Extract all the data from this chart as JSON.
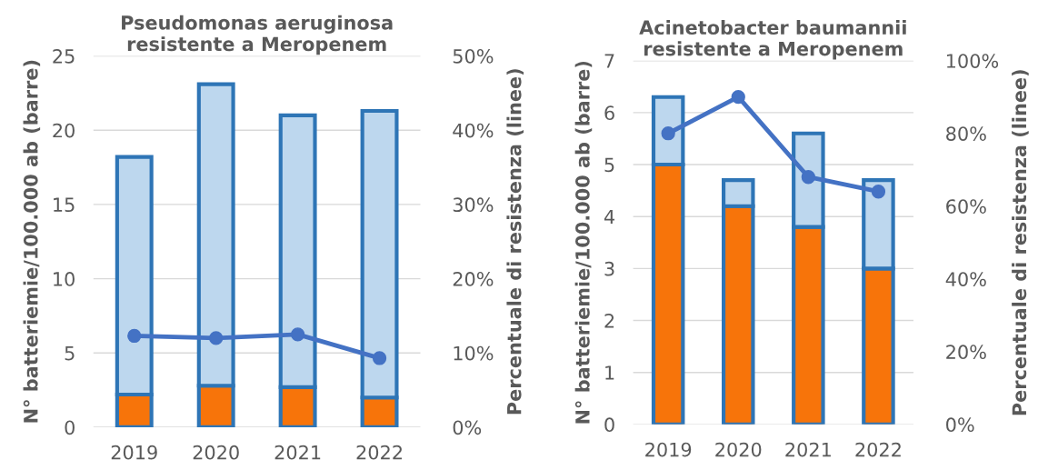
{
  "chart_data": [
    {
      "type": "bar",
      "title": "Pseudomonas aeruginosa\nresistente a Meropenem",
      "ylabel": "N° batteriemie/100.000 ab (barre)",
      "y2label": "Percentuale di resistenza (linee)",
      "categories": [
        "2019",
        "2020",
        "2021",
        "2022"
      ],
      "stacked": true,
      "grid": "y",
      "legend": false,
      "series": [
        {
          "color": "#f7740a",
          "values": [
            2.2,
            2.8,
            2.7,
            2.0
          ]
        },
        {
          "color": "#bdd7ee",
          "values": [
            16.0,
            20.3,
            18.3,
            19.3
          ]
        },
        {
          "type": "line",
          "axis": "y2",
          "color": "#4472c4",
          "marker": "circle",
          "line_style": "solid",
          "values": [
            12.3,
            12.0,
            12.5,
            9.3
          ]
        }
      ],
      "ylim": [
        0,
        25
      ],
      "yticks": [
        0,
        5,
        10,
        15,
        20,
        25
      ],
      "y2lim": [
        0,
        50
      ],
      "y2ticks": [
        {
          "value": 0,
          "label": "0%"
        },
        {
          "value": 10,
          "label": "10%"
        },
        {
          "value": 20,
          "label": "20%"
        },
        {
          "value": 30,
          "label": "30%"
        },
        {
          "value": 40,
          "label": "40%"
        },
        {
          "value": 50,
          "label": "50%"
        }
      ]
    },
    {
      "type": "bar",
      "title": "Acinetobacter baumannii\nresistente a Meropenem",
      "ylabel": "N° batteriemie/100.000 ab (barre)",
      "y2label": "Percentuale di resistenza (linee)",
      "categories": [
        "2019",
        "2020",
        "2021",
        "2022"
      ],
      "stacked": true,
      "grid": "y",
      "legend": false,
      "series": [
        {
          "color": "#f7740a",
          "values": [
            5.0,
            4.2,
            3.8,
            3.0
          ]
        },
        {
          "color": "#bdd7ee",
          "values": [
            1.3,
            0.5,
            1.8,
            1.7
          ]
        },
        {
          "type": "line",
          "axis": "y2",
          "color": "#4472c4",
          "marker": "circle",
          "line_style": "solid",
          "values": [
            80,
            90,
            68,
            64
          ]
        }
      ],
      "ylim": [
        0,
        7
      ],
      "yticks": [
        0,
        1,
        2,
        3,
        4,
        5,
        6,
        7
      ],
      "y2lim": [
        0,
        100
      ],
      "y2ticks": [
        {
          "value": 0,
          "label": "0%"
        },
        {
          "value": 20,
          "label": "20%"
        },
        {
          "value": 40,
          "label": "40%"
        },
        {
          "value": 60,
          "label": "60%"
        },
        {
          "value": 80,
          "label": "80%"
        },
        {
          "value": 100,
          "label": "100%"
        }
      ]
    }
  ]
}
